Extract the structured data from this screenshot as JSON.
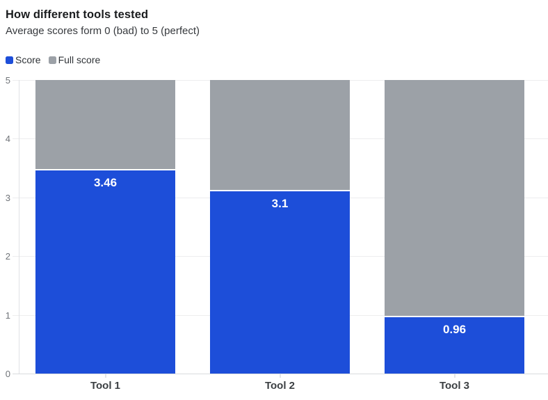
{
  "header": {
    "title": "How different tools tested",
    "subtitle": "Average scores form 0 (bad) to 5 (perfect)"
  },
  "legend": {
    "position": "top-left",
    "items": [
      {
        "label": "Score",
        "color": "#1d4ed9"
      },
      {
        "label": "Full score",
        "color": "#9ca1a7"
      }
    ]
  },
  "chart_data": {
    "type": "bar",
    "stacked": true,
    "title": "How different tools tested",
    "subtitle": "Average scores form 0 (bad) to 5 (perfect)",
    "categories": [
      "Tool 1",
      "Tool 2",
      "Tool 3"
    ],
    "series": [
      {
        "name": "Score",
        "color": "#1d4ed9",
        "values": [
          3.46,
          3.1,
          0.96
        ]
      },
      {
        "name": "Full score",
        "color": "#9ca1a7",
        "values": [
          5,
          5,
          5
        ]
      }
    ],
    "value_labels": [
      "3.46",
      "3.1",
      "0.96"
    ],
    "xlabel": "",
    "ylabel": "",
    "ylim": [
      0,
      5
    ],
    "y_ticks": [
      0,
      1,
      2,
      3,
      4,
      5
    ],
    "grid": true,
    "legend_position": "top-left",
    "colors": {
      "score_bar": "#1d4ed9",
      "full_score_bar": "#9ca1a7",
      "value_label_text": "#ffffff",
      "gridline": "#ededee",
      "axis_line": "#d9dbde",
      "y_tick_label": "#6f7378",
      "x_tick_label": "#3c4043",
      "title_text": "#1a1c1e",
      "subtitle_text": "#36393d",
      "background": "#ffffff"
    }
  }
}
